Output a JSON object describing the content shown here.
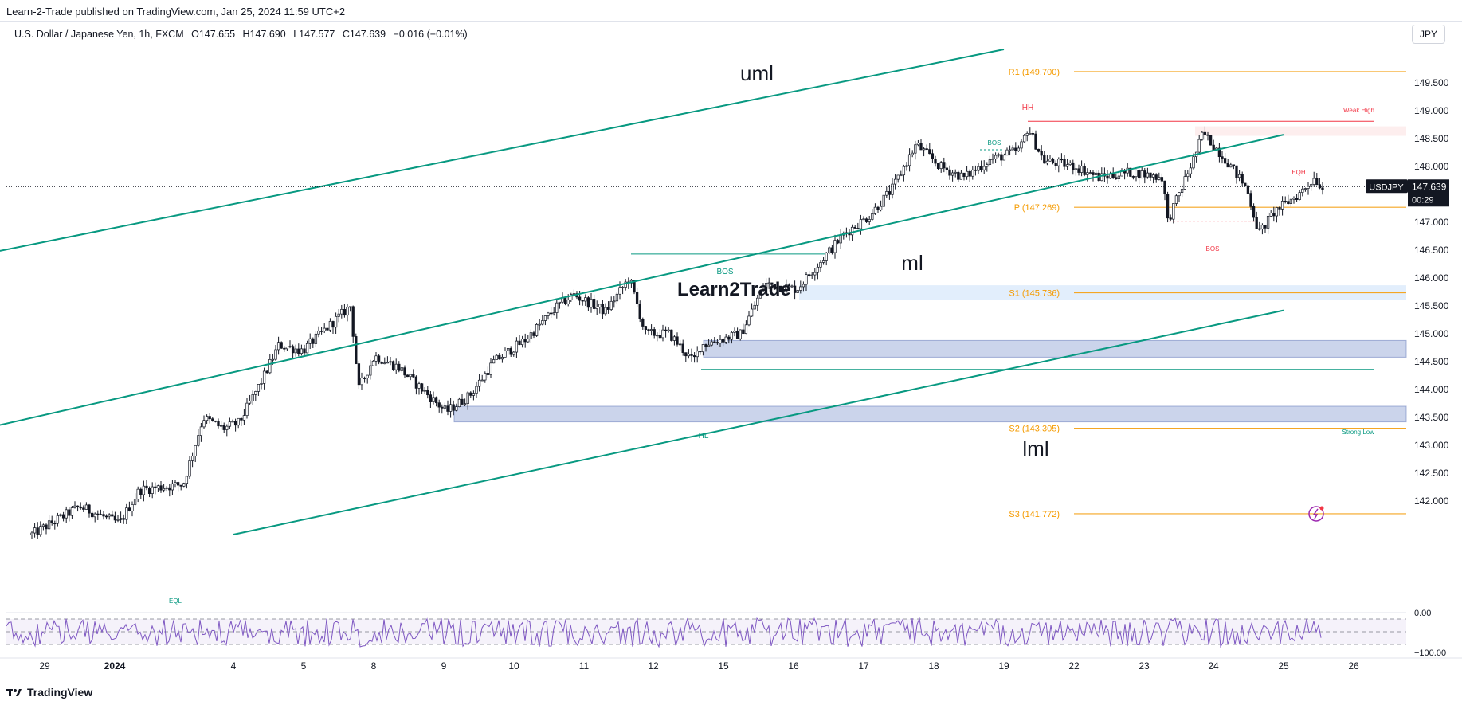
{
  "publisher": "Learn-2-Trade published on TradingView.com, Jan 25, 2024 11:59 UTC+2",
  "symbol": {
    "name": "U.S. Dollar / Japanese Yen, 1h, FXCM",
    "open": "O147.655",
    "high": "H147.690",
    "low": "L147.577",
    "close": "C147.639",
    "change": "−0.016 (−0.01%)"
  },
  "currency": "JPY",
  "footer": {
    "brand": "TradingView"
  },
  "chart_data": {
    "type": "candlestick",
    "instrument": "USDJPY",
    "price_tag": {
      "label": "USDJPY",
      "value": "147.639",
      "countdown": "00:29"
    },
    "y_ticks": [
      "149.500",
      "149.000",
      "148.500",
      "148.000",
      "147.500",
      "147.000",
      "146.500",
      "146.000",
      "145.500",
      "145.000",
      "144.500",
      "144.000",
      "143.500",
      "143.000",
      "142.500",
      "142.000"
    ],
    "y_tick_values": [
      149.5,
      149.0,
      148.5,
      148.0,
      147.5,
      147.0,
      146.5,
      146.0,
      145.5,
      145.0,
      144.5,
      144.0,
      143.5,
      143.0,
      142.5,
      142.0
    ],
    "x_ticks": [
      "29",
      "2024",
      "4",
      "5",
      "8",
      "9",
      "10",
      "11",
      "12",
      "15",
      "16",
      "17",
      "18",
      "19",
      "22",
      "23",
      "24",
      "25",
      "26"
    ],
    "channel_lines": [
      {
        "label": "uml",
        "p1": [
          "2023-12-28",
          146.43
        ],
        "p2": [
          "2024-01-19",
          150.1
        ]
      },
      {
        "label": "ml",
        "p1": [
          "2023-12-28",
          143.3
        ],
        "p2": [
          "2024-01-25",
          148.57
        ]
      },
      {
        "label": "lml",
        "p1": [
          "2024-01-04",
          141.4
        ],
        "p2": [
          "2024-01-25",
          145.42
        ]
      }
    ],
    "pivot_levels": [
      {
        "label": "R1 (149.700)",
        "value": 149.7
      },
      {
        "label": "P (147.269)",
        "value": 147.269
      },
      {
        "label": "S1 (145.736)",
        "value": 145.736
      },
      {
        "label": "S2 (143.305)",
        "value": 143.305
      },
      {
        "label": "S3 (141.772)",
        "value": 141.772
      }
    ],
    "zones": [
      {
        "from": 145.6,
        "to": 145.87
      },
      {
        "from": 144.58,
        "to": 144.88
      },
      {
        "from": 143.42,
        "to": 143.7
      }
    ],
    "annotations": [
      "HH",
      "Weak High",
      "EQH",
      "BOS",
      "BOS",
      "BOS",
      "HL",
      "Strong Low",
      "EQL"
    ],
    "last_price": 147.639,
    "rsi": {
      "ticks": [
        "0.00",
        "−100.00"
      ]
    },
    "watermark": "Learn2Trade"
  }
}
